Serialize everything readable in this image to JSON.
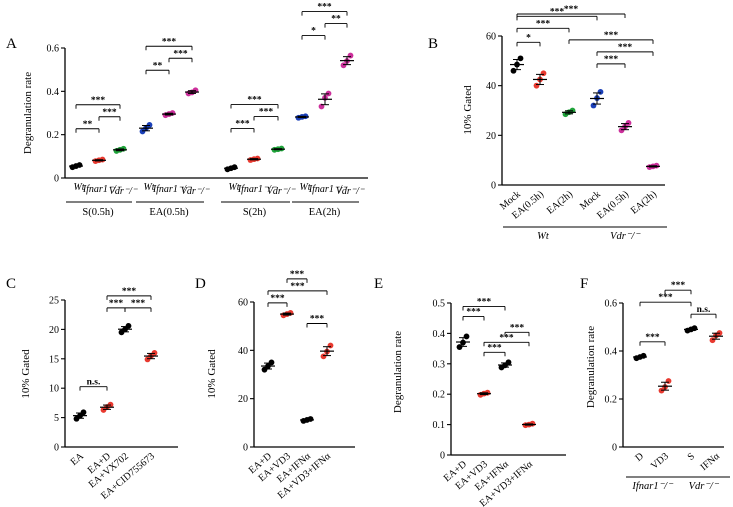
{
  "chart_data": [
    {
      "panel": "A",
      "type": "scatter",
      "ylabel": "Degranulation rate",
      "ylim": [
        0,
        0.6
      ],
      "yticks": [
        "0",
        "0.2",
        "0.4",
        "0.6"
      ],
      "groups": [
        {
          "label": "S(0.5h)",
          "categories": [
            "Wt",
            "Ifnar1⁻/⁻",
            "Vdr⁻/⁻"
          ],
          "colors": [
            "#000000",
            "#e8392f",
            "#1fa33a"
          ],
          "values": [
            [
              0.05,
              0.055,
              0.06
            ],
            [
              0.078,
              0.082,
              0.085
            ],
            [
              0.125,
              0.13,
              0.135
            ]
          ],
          "sig": [
            {
              "a": 0,
              "b": 1,
              "text": "**"
            },
            {
              "a": 1,
              "b": 2,
              "text": "***"
            },
            {
              "a": 0,
              "b": 2,
              "text": "***"
            }
          ]
        },
        {
          "label": "EA(0.5h)",
          "categories": [
            "Wt",
            "Ifnar1⁻/⁻",
            "Vdr⁻/⁻"
          ],
          "colors": [
            "#1a3fb8",
            "#cc2f9b",
            "#cc2f9b"
          ],
          "values": [
            [
              0.215,
              0.23,
              0.245
            ],
            [
              0.29,
              0.295,
              0.3
            ],
            [
              0.39,
              0.395,
              0.405
            ]
          ],
          "sig": [
            {
              "a": 0,
              "b": 1,
              "text": "**"
            },
            {
              "a": 1,
              "b": 2,
              "text": "***"
            },
            {
              "a": 0,
              "b": 2,
              "text": "***"
            }
          ]
        },
        {
          "label": "S(2h)",
          "categories": [
            "Wt",
            "Ifnar1⁻/⁻",
            "Vdr⁻/⁻"
          ],
          "colors": [
            "#000000",
            "#e8392f",
            "#1fa33a"
          ],
          "values": [
            [
              0.04,
              0.045,
              0.05
            ],
            [
              0.083,
              0.087,
              0.09
            ],
            [
              0.13,
              0.133,
              0.136
            ]
          ],
          "sig": [
            {
              "a": 0,
              "b": 1,
              "text": "***"
            },
            {
              "a": 1,
              "b": 2,
              "text": "***"
            },
            {
              "a": 0,
              "b": 2,
              "text": "***"
            }
          ]
        },
        {
          "label": "EA(2h)",
          "categories": [
            "Wt",
            "Ifnar1⁻/⁻",
            "Vdr⁻/⁻"
          ],
          "colors": [
            "#1a3fb8",
            "#cc2f9b",
            "#cc2f9b"
          ],
          "values": [
            [
              0.278,
              0.282,
              0.285
            ],
            [
              0.33,
              0.37,
              0.39
            ],
            [
              0.52,
              0.54,
              0.565
            ]
          ],
          "sig": [
            {
              "a": 0,
              "b": 1,
              "text": "*"
            },
            {
              "a": 1,
              "b": 2,
              "text": "**"
            },
            {
              "a": 0,
              "b": 2,
              "text": "***"
            }
          ]
        }
      ]
    },
    {
      "panel": "B",
      "type": "scatter",
      "ylabel": "10% Gated",
      "ylim": [
        0,
        60
      ],
      "yticks": [
        "0",
        "20",
        "40",
        "60"
      ],
      "categories": [
        "Mock",
        "EA(0.5h)",
        "EA(2h)",
        "Mock",
        "EA(0.5h)",
        "EA(2h)"
      ],
      "colors": [
        "#000000",
        "#e8392f",
        "#1fa33a",
        "#1a3fb8",
        "#cc2f9b",
        "#cc2f9b"
      ],
      "values": [
        [
          46,
          48.5,
          51
        ],
        [
          40,
          42.5,
          45
        ],
        [
          28.5,
          29.3,
          30
        ],
        [
          32,
          35,
          37.5
        ],
        [
          22,
          23.5,
          25
        ],
        [
          7.2,
          7.5,
          7.8
        ]
      ],
      "group_labels": [
        {
          "text": "Wt",
          "from": 0,
          "to": 2
        },
        {
          "text": "Vdr⁻/⁻",
          "from": 3,
          "to": 5
        }
      ],
      "sig": [
        {
          "a": 0,
          "b": 1,
          "text": "*"
        },
        {
          "a": 0,
          "b": 2,
          "text": "***"
        },
        {
          "a": 0,
          "b": 3,
          "text": "***"
        },
        {
          "a": 0,
          "b": 4,
          "text": "***"
        },
        {
          "a": 3,
          "b": 4,
          "text": "***"
        },
        {
          "a": 3,
          "b": 5,
          "text": "***"
        },
        {
          "a": 2,
          "b": 5,
          "text": "***"
        }
      ]
    },
    {
      "panel": "C",
      "type": "scatter",
      "ylabel": "10% Gated",
      "ylim": [
        0,
        25
      ],
      "yticks": [
        "0",
        "5",
        "10",
        "15",
        "20",
        "25"
      ],
      "categories": [
        "EA",
        "EA+D",
        "EA+VX702",
        "EA+CID755673"
      ],
      "colors": [
        "#000000",
        "#e8392f",
        "#000000",
        "#e8392f"
      ],
      "values": [
        [
          4.8,
          5.3,
          5.9
        ],
        [
          6.3,
          6.8,
          7.2
        ],
        [
          19.5,
          20.0,
          20.6
        ],
        [
          14.9,
          15.5,
          16.0
        ]
      ],
      "sig": [
        {
          "a": 0,
          "b": 1,
          "text": "n.s."
        },
        {
          "a": 1,
          "b": 2,
          "text": "***"
        },
        {
          "a": 2,
          "b": 3,
          "text": "***"
        },
        {
          "a": 1,
          "b": 3,
          "text": "***"
        }
      ]
    },
    {
      "panel": "D",
      "type": "scatter",
      "ylabel": "10% Gated",
      "ylim": [
        0,
        60
      ],
      "yticks": [
        "0",
        "20",
        "40",
        "60"
      ],
      "categories": [
        "EA+D",
        "EA+VD3",
        "EA+IFNα",
        "EA+VD3+IFNα"
      ],
      "colors": [
        "#000000",
        "#e8392f",
        "#000000",
        "#e8392f"
      ],
      "values": [
        [
          32,
          33.5,
          35
        ],
        [
          54.5,
          55,
          55.5
        ],
        [
          10.8,
          11.2,
          11.6
        ],
        [
          37.5,
          39.5,
          42
        ]
      ],
      "sig": [
        {
          "a": 0,
          "b": 1,
          "text": "***"
        },
        {
          "a": 0,
          "b": 3,
          "text": "***"
        },
        {
          "a": 1,
          "b": 2,
          "text": "***"
        },
        {
          "a": 2,
          "b": 3,
          "text": "***"
        }
      ]
    },
    {
      "panel": "E",
      "type": "scatter",
      "ylabel": "Degranulation rate",
      "ylim": [
        0,
        0.5
      ],
      "yticks": [
        "0",
        "0.1",
        "0.2",
        "0.3",
        "0.4",
        "0.5"
      ],
      "categories": [
        "EA+D",
        "EA+VD3",
        "EA+IFNα",
        "EA+VD3+IFNα"
      ],
      "colors": [
        "#000000",
        "#e8392f",
        "#000000",
        "#e8392f"
      ],
      "values": [
        [
          0.355,
          0.37,
          0.39
        ],
        [
          0.198,
          0.202,
          0.205
        ],
        [
          0.288,
          0.295,
          0.305
        ],
        [
          0.098,
          0.1,
          0.103
        ]
      ],
      "sig": [
        {
          "a": 0,
          "b": 1,
          "text": "***"
        },
        {
          "a": 0,
          "b": 2,
          "text": "***"
        },
        {
          "a": 1,
          "b": 3,
          "text": "***"
        },
        {
          "a": 2,
          "b": 3,
          "text": "***"
        },
        {
          "a": 1,
          "b": 2,
          "text": "***"
        }
      ]
    },
    {
      "panel": "F",
      "type": "scatter",
      "ylabel": "Degranulation rate",
      "ylim": [
        0,
        0.6
      ],
      "yticks": [
        "0",
        "0.2",
        "0.4",
        "0.6"
      ],
      "categories": [
        "D",
        "VD3",
        "S",
        "IFNα"
      ],
      "colors": [
        "#000000",
        "#e8392f",
        "#000000",
        "#e8392f"
      ],
      "values": [
        [
          0.37,
          0.375,
          0.38
        ],
        [
          0.235,
          0.25,
          0.275
        ],
        [
          0.485,
          0.49,
          0.495
        ],
        [
          0.445,
          0.465,
          0.475
        ]
      ],
      "group_labels": [
        {
          "text": "Ifnar1⁻/⁻",
          "from": 0,
          "to": 1
        },
        {
          "text": "Vdr⁻/⁻",
          "from": 2,
          "to": 3
        }
      ],
      "sig": [
        {
          "a": 0,
          "b": 1,
          "text": "***"
        },
        {
          "a": 2,
          "b": 3,
          "text": "n.s."
        },
        {
          "a": 0,
          "b": 2,
          "text": "***"
        },
        {
          "a": 1,
          "b": 2,
          "text": "***"
        }
      ]
    }
  ]
}
